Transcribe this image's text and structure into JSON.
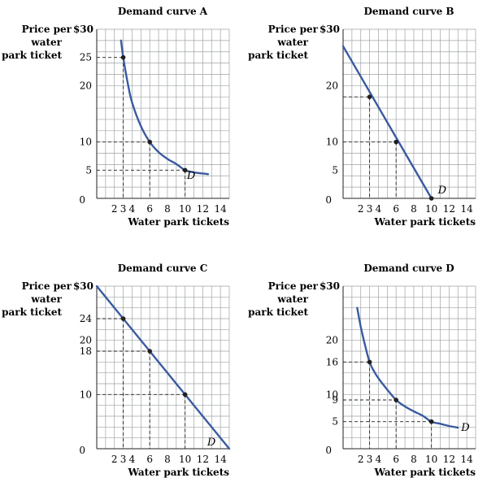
{
  "figure": {
    "accent_color": "#3a5ba0",
    "grid_color": "#9fa3a6"
  },
  "chart_data": [
    {
      "type": "line",
      "title": "Demand curve A",
      "ylabel": "Price per water park ticket",
      "xlabel": "Water park tickets",
      "xlim": [
        0,
        15
      ],
      "ylim": [
        0,
        30
      ],
      "y_top_label": "$30",
      "x_ticks": [
        "2",
        "3",
        "4",
        "6",
        "8",
        "10",
        "12",
        "14"
      ],
      "y_ticks": [
        "25",
        "20",
        "10",
        "5"
      ],
      "zero_label": "0",
      "curve_label": "D",
      "series": [
        {
          "x": [
            2.75,
            3,
            3.5,
            4,
            5,
            6,
            7,
            8,
            9,
            10,
            11,
            12,
            12.6
          ],
          "y": [
            28,
            25,
            20.5,
            17,
            12.8,
            10,
            8.2,
            7,
            6.1,
            5,
            4.6,
            4.4,
            4.3
          ]
        }
      ],
      "points": [
        {
          "x": 3,
          "y": 25
        },
        {
          "x": 6,
          "y": 10
        },
        {
          "x": 10,
          "y": 5
        }
      ],
      "grid": true
    },
    {
      "type": "line",
      "title": "Demand curve B",
      "ylabel": "Price per water park ticket",
      "xlabel": "Water park tickets",
      "xlim": [
        0,
        15
      ],
      "ylim": [
        0,
        30
      ],
      "y_top_label": "$30",
      "x_ticks": [
        "2",
        "3",
        "4",
        "6",
        "8",
        "10",
        "12",
        "14"
      ],
      "y_ticks": [
        "20",
        "10",
        "5"
      ],
      "zero_label": "0",
      "curve_label": "D",
      "series": [
        {
          "x": [
            0,
            10
          ],
          "y": [
            27,
            0
          ]
        }
      ],
      "points": [
        {
          "x": 3,
          "y": 18
        },
        {
          "x": 6,
          "y": 10
        },
        {
          "x": 10,
          "y": 0
        }
      ],
      "grid": true
    },
    {
      "type": "line",
      "title": "Demand curve C",
      "ylabel": "Price per water park ticket",
      "xlabel": "Water park tickets",
      "xlim": [
        0,
        15
      ],
      "ylim": [
        0,
        30
      ],
      "y_top_label": "$30",
      "x_ticks": [
        "2",
        "3",
        "4",
        "6",
        "8",
        "10",
        "12",
        "14"
      ],
      "y_ticks": [
        "24",
        "20",
        "18",
        "10"
      ],
      "zero_label": "0",
      "curve_label": "D",
      "series": [
        {
          "x": [
            0,
            15
          ],
          "y": [
            30,
            0
          ]
        }
      ],
      "points": [
        {
          "x": 3,
          "y": 24
        },
        {
          "x": 6,
          "y": 18
        },
        {
          "x": 10,
          "y": 10
        }
      ],
      "grid": true
    },
    {
      "type": "line",
      "title": "Demand curve D",
      "ylabel": "Price per water park ticket",
      "xlabel": "Water park tickets",
      "xlim": [
        0,
        15
      ],
      "ylim": [
        0,
        30
      ],
      "y_top_label": "$30",
      "x_ticks": [
        "2",
        "3",
        "4",
        "6",
        "8",
        "10",
        "12",
        "14"
      ],
      "y_ticks": [
        "20",
        "16",
        "10",
        "9",
        "5"
      ],
      "zero_label": "0",
      "curve_label": "D",
      "series": [
        {
          "x": [
            1.6,
            2,
            2.5,
            3,
            3.5,
            4,
            5,
            6,
            7,
            8,
            9,
            10,
            11,
            12,
            13
          ],
          "y": [
            26,
            22.5,
            19,
            16,
            14.3,
            13,
            10.9,
            9,
            7.8,
            6.9,
            6.1,
            5,
            4.6,
            4.2,
            3.9
          ]
        }
      ],
      "points": [
        {
          "x": 3,
          "y": 16
        },
        {
          "x": 6,
          "y": 9
        },
        {
          "x": 10,
          "y": 5
        }
      ],
      "grid": true
    }
  ]
}
